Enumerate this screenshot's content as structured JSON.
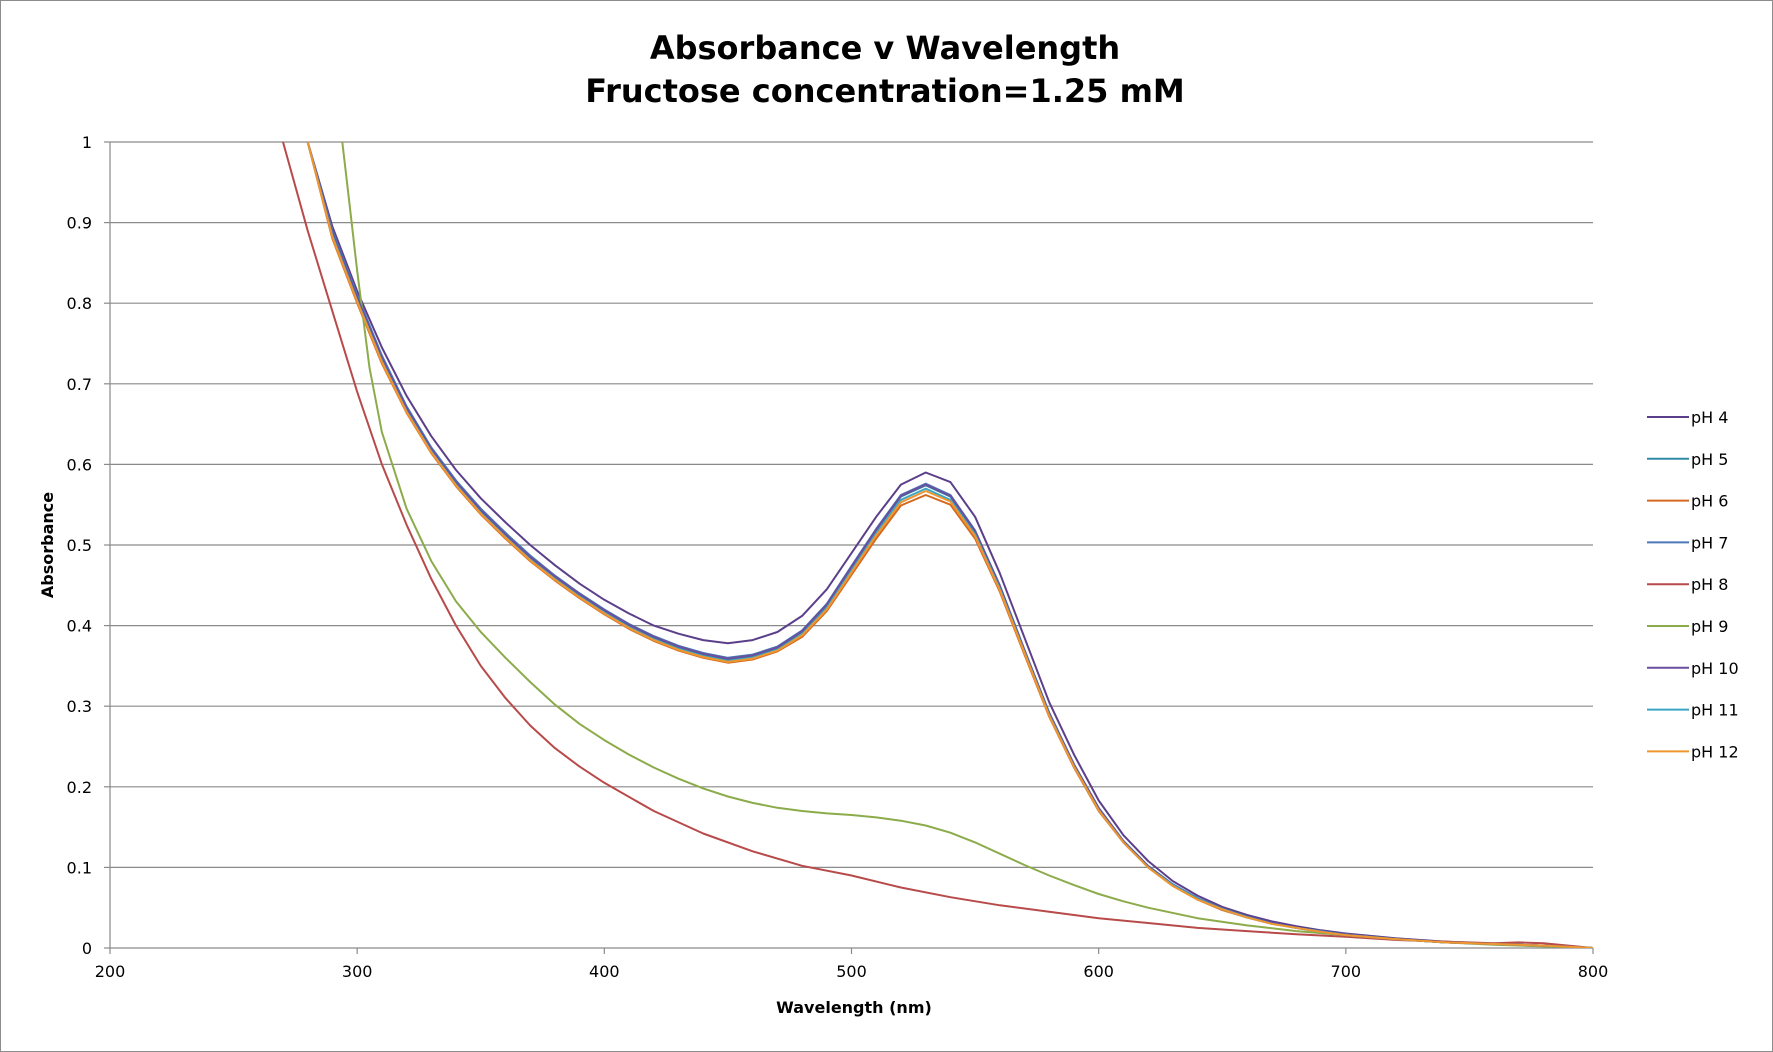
{
  "chart_data": {
    "type": "line",
    "title": "Absorbance v Wavelength",
    "subtitle": "Fructose concentration=1.25 mM",
    "xlabel": "Wavelength (nm)",
    "ylabel": "Absorbance",
    "xlim": [
      200,
      800
    ],
    "ylim": [
      0,
      1
    ],
    "x_ticks": [
      "200",
      "300",
      "400",
      "500",
      "600",
      "700",
      "800"
    ],
    "y_ticks": [
      "0",
      "0.1",
      "0.2",
      "0.3",
      "0.4",
      "0.5",
      "0.6",
      "0.7",
      "0.8",
      "0.9",
      "1"
    ],
    "grid": "horizontal",
    "legend_position": "right",
    "series": [
      {
        "name": "pH 4",
        "color": "#5b3f8a",
        "x": [
          280,
          290,
          300,
          310,
          320,
          330,
          340,
          350,
          360,
          370,
          380,
          390,
          400,
          410,
          420,
          430,
          440,
          450,
          460,
          470,
          480,
          490,
          500,
          510,
          520,
          530,
          540,
          550,
          560,
          570,
          580,
          590,
          600,
          610,
          620,
          630,
          640,
          650,
          660,
          670,
          680,
          690,
          700,
          720,
          740,
          760,
          780,
          800
        ],
        "y": [
          1.0,
          0.895,
          0.815,
          0.745,
          0.685,
          0.635,
          0.593,
          0.558,
          0.528,
          0.5,
          0.475,
          0.452,
          0.432,
          0.415,
          0.4,
          0.39,
          0.382,
          0.378,
          0.382,
          0.392,
          0.412,
          0.445,
          0.49,
          0.535,
          0.575,
          0.59,
          0.578,
          0.535,
          0.465,
          0.385,
          0.305,
          0.24,
          0.183,
          0.14,
          0.108,
          0.083,
          0.065,
          0.051,
          0.041,
          0.033,
          0.027,
          0.022,
          0.018,
          0.012,
          0.008,
          0.005,
          0.003,
          0.0
        ]
      },
      {
        "name": "pH 5",
        "color": "#2f8aa5",
        "x": [
          280,
          290,
          300,
          310,
          320,
          330,
          340,
          350,
          360,
          370,
          380,
          390,
          400,
          410,
          420,
          430,
          440,
          450,
          460,
          470,
          480,
          490,
          500,
          510,
          520,
          530,
          540,
          550,
          560,
          570,
          580,
          590,
          600,
          610,
          620,
          630,
          640,
          650,
          660,
          670,
          680,
          690,
          700,
          720,
          740,
          760,
          780,
          800
        ],
        "y": [
          1.0,
          0.885,
          0.805,
          0.73,
          0.668,
          0.618,
          0.577,
          0.542,
          0.512,
          0.484,
          0.46,
          0.438,
          0.418,
          0.4,
          0.385,
          0.373,
          0.364,
          0.358,
          0.362,
          0.372,
          0.392,
          0.425,
          0.472,
          0.518,
          0.56,
          0.574,
          0.56,
          0.516,
          0.448,
          0.368,
          0.29,
          0.226,
          0.172,
          0.132,
          0.101,
          0.078,
          0.061,
          0.048,
          0.038,
          0.031,
          0.025,
          0.02,
          0.017,
          0.011,
          0.007,
          0.005,
          0.003,
          0.0
        ]
      },
      {
        "name": "pH 6",
        "color": "#d4691f",
        "x": [
          280,
          290,
          300,
          310,
          320,
          330,
          340,
          350,
          360,
          370,
          380,
          390,
          400,
          410,
          420,
          430,
          440,
          450,
          460,
          470,
          480,
          490,
          500,
          510,
          520,
          530,
          540,
          550,
          560,
          570,
          580,
          590,
          600,
          610,
          620,
          630,
          640,
          650,
          660,
          670,
          680,
          690,
          700,
          720,
          740,
          760,
          780,
          800
        ],
        "y": [
          1.0,
          0.88,
          0.8,
          0.725,
          0.664,
          0.614,
          0.573,
          0.538,
          0.508,
          0.48,
          0.456,
          0.434,
          0.414,
          0.396,
          0.381,
          0.369,
          0.36,
          0.354,
          0.358,
          0.368,
          0.386,
          0.418,
          0.463,
          0.508,
          0.549,
          0.562,
          0.55,
          0.508,
          0.442,
          0.364,
          0.287,
          0.224,
          0.17,
          0.131,
          0.1,
          0.077,
          0.06,
          0.047,
          0.038,
          0.03,
          0.025,
          0.02,
          0.016,
          0.011,
          0.007,
          0.005,
          0.003,
          0.0
        ]
      },
      {
        "name": "pH 7",
        "color": "#4a78b8",
        "x": [
          280,
          290,
          300,
          310,
          320,
          330,
          340,
          350,
          360,
          370,
          380,
          390,
          400,
          410,
          420,
          430,
          440,
          450,
          460,
          470,
          480,
          490,
          500,
          510,
          520,
          530,
          540,
          550,
          560,
          570,
          580,
          590,
          600,
          610,
          620,
          630,
          640,
          650,
          660,
          670,
          680,
          690,
          700,
          720,
          740,
          760,
          780,
          800
        ],
        "y": [
          1.0,
          0.89,
          0.81,
          0.735,
          0.672,
          0.621,
          0.58,
          0.545,
          0.515,
          0.487,
          0.462,
          0.44,
          0.42,
          0.402,
          0.387,
          0.375,
          0.366,
          0.36,
          0.364,
          0.374,
          0.394,
          0.427,
          0.474,
          0.52,
          0.562,
          0.576,
          0.562,
          0.518,
          0.45,
          0.37,
          0.292,
          0.228,
          0.174,
          0.133,
          0.102,
          0.079,
          0.062,
          0.049,
          0.039,
          0.031,
          0.025,
          0.021,
          0.017,
          0.011,
          0.007,
          0.005,
          0.003,
          0.0
        ]
      },
      {
        "name": "pH 8",
        "color": "#b84a4a",
        "x": [
          270,
          280,
          290,
          300,
          310,
          320,
          330,
          340,
          350,
          360,
          370,
          380,
          390,
          400,
          420,
          440,
          460,
          480,
          500,
          520,
          540,
          560,
          580,
          600,
          620,
          640,
          660,
          680,
          700,
          720,
          740,
          760,
          770,
          780,
          790,
          800
        ],
        "y": [
          1.0,
          0.89,
          0.79,
          0.69,
          0.6,
          0.525,
          0.458,
          0.4,
          0.35,
          0.31,
          0.276,
          0.248,
          0.225,
          0.205,
          0.17,
          0.142,
          0.12,
          0.102,
          0.09,
          0.075,
          0.063,
          0.053,
          0.045,
          0.037,
          0.031,
          0.025,
          0.021,
          0.017,
          0.014,
          0.01,
          0.008,
          0.006,
          0.007,
          0.006,
          0.003,
          0.0
        ]
      },
      {
        "name": "pH 9",
        "color": "#8cab4a",
        "x": [
          294,
          297,
          300,
          305,
          310,
          320,
          330,
          340,
          350,
          360,
          370,
          380,
          390,
          400,
          410,
          420,
          430,
          440,
          450,
          460,
          470,
          480,
          490,
          500,
          510,
          520,
          530,
          540,
          550,
          560,
          570,
          580,
          590,
          600,
          610,
          620,
          640,
          660,
          680,
          700,
          720,
          740,
          760,
          780,
          800
        ],
        "y": [
          1.0,
          0.92,
          0.84,
          0.72,
          0.64,
          0.545,
          0.48,
          0.43,
          0.392,
          0.36,
          0.33,
          0.302,
          0.278,
          0.258,
          0.24,
          0.224,
          0.21,
          0.198,
          0.188,
          0.18,
          0.174,
          0.17,
          0.167,
          0.165,
          0.162,
          0.158,
          0.152,
          0.143,
          0.131,
          0.117,
          0.103,
          0.09,
          0.078,
          0.067,
          0.058,
          0.05,
          0.037,
          0.028,
          0.021,
          0.016,
          0.011,
          0.007,
          0.004,
          0.002,
          0.0
        ]
      },
      {
        "name": "pH 10",
        "color": "#6a4f9e",
        "x": [
          280,
          290,
          300,
          310,
          320,
          330,
          340,
          350,
          360,
          370,
          380,
          390,
          400,
          410,
          420,
          430,
          440,
          450,
          460,
          470,
          480,
          490,
          500,
          510,
          520,
          530,
          540,
          550,
          560,
          570,
          580,
          590,
          600,
          610,
          620,
          630,
          640,
          650,
          660,
          670,
          680,
          690,
          700,
          720,
          740,
          760,
          780,
          800
        ],
        "y": [
          1.0,
          0.887,
          0.807,
          0.732,
          0.67,
          0.619,
          0.578,
          0.543,
          0.513,
          0.485,
          0.461,
          0.439,
          0.419,
          0.401,
          0.386,
          0.374,
          0.365,
          0.359,
          0.363,
          0.373,
          0.393,
          0.426,
          0.473,
          0.519,
          0.561,
          0.575,
          0.561,
          0.517,
          0.449,
          0.369,
          0.291,
          0.227,
          0.173,
          0.132,
          0.101,
          0.078,
          0.061,
          0.048,
          0.038,
          0.031,
          0.025,
          0.02,
          0.017,
          0.011,
          0.007,
          0.005,
          0.003,
          0.0
        ]
      },
      {
        "name": "pH 11",
        "color": "#3aa6c4",
        "x": [
          280,
          290,
          300,
          310,
          320,
          330,
          340,
          350,
          360,
          370,
          380,
          390,
          400,
          410,
          420,
          430,
          440,
          450,
          460,
          470,
          480,
          490,
          500,
          510,
          520,
          530,
          540,
          550,
          560,
          570,
          580,
          590,
          600,
          610,
          620,
          630,
          640,
          650,
          660,
          670,
          680,
          690,
          700,
          720,
          740,
          760,
          780,
          800
        ],
        "y": [
          1.0,
          0.884,
          0.803,
          0.728,
          0.666,
          0.616,
          0.575,
          0.54,
          0.51,
          0.482,
          0.458,
          0.436,
          0.416,
          0.398,
          0.383,
          0.371,
          0.362,
          0.356,
          0.36,
          0.37,
          0.389,
          0.422,
          0.468,
          0.514,
          0.556,
          0.57,
          0.556,
          0.513,
          0.446,
          0.367,
          0.289,
          0.225,
          0.171,
          0.131,
          0.1,
          0.078,
          0.061,
          0.048,
          0.038,
          0.03,
          0.025,
          0.02,
          0.016,
          0.011,
          0.007,
          0.005,
          0.003,
          0.0
        ]
      },
      {
        "name": "pH 12",
        "color": "#f0962e",
        "x": [
          280,
          290,
          300,
          310,
          320,
          330,
          340,
          350,
          360,
          370,
          380,
          390,
          400,
          410,
          420,
          430,
          440,
          450,
          460,
          470,
          480,
          490,
          500,
          510,
          520,
          530,
          540,
          550,
          560,
          570,
          580,
          590,
          600,
          610,
          620,
          630,
          640,
          650,
          660,
          670,
          680,
          690,
          700,
          720,
          740,
          760,
          780,
          800
        ],
        "y": [
          1.0,
          0.882,
          0.802,
          0.727,
          0.665,
          0.615,
          0.574,
          0.539,
          0.509,
          0.481,
          0.457,
          0.435,
          0.415,
          0.397,
          0.382,
          0.37,
          0.361,
          0.355,
          0.359,
          0.369,
          0.388,
          0.42,
          0.466,
          0.512,
          0.553,
          0.567,
          0.554,
          0.511,
          0.444,
          0.366,
          0.288,
          0.225,
          0.171,
          0.131,
          0.1,
          0.077,
          0.06,
          0.048,
          0.038,
          0.03,
          0.025,
          0.02,
          0.016,
          0.011,
          0.007,
          0.005,
          0.003,
          0.0
        ]
      }
    ]
  }
}
